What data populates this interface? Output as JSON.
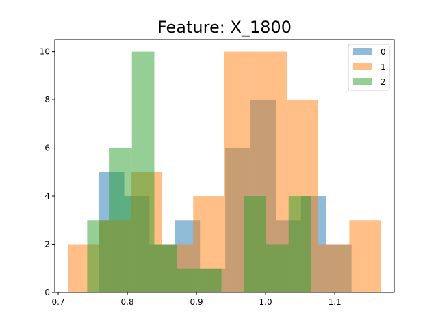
{
  "chart_data": {
    "type": "histogram",
    "title": "Feature: X_1800",
    "xlabel": "",
    "ylabel": "",
    "xlim": [
      0.695,
      1.186
    ],
    "ylim": [
      0,
      10.5
    ],
    "x_ticks": [
      0.7,
      0.8,
      0.9,
      1.0,
      1.1
    ],
    "x_tick_labels": [
      "0.7",
      "0.8",
      "0.9",
      "1.0",
      "1.1"
    ],
    "y_ticks": [
      0,
      2,
      4,
      6,
      8,
      10
    ],
    "y_tick_labels": [
      "0",
      "2",
      "4",
      "6",
      "8",
      "10"
    ],
    "grid": false,
    "legend_position": "top-right",
    "series": [
      {
        "name": "0",
        "color": "#1f77b4",
        "alpha": 0.5,
        "bin_edges": [
          0.759,
          0.7955,
          0.832,
          0.8686,
          0.9051,
          0.9416,
          0.9782,
          1.0147,
          1.0512,
          1.0878,
          1.1243
        ],
        "counts": [
          5,
          4,
          2,
          3,
          1,
          6,
          8,
          3,
          4,
          2
        ]
      },
      {
        "name": "1",
        "color": "#ff7f0e",
        "alpha": 0.5,
        "bin_edges": [
          0.7145,
          0.7597,
          0.8049,
          0.8501,
          0.8952,
          0.9404,
          0.9856,
          1.0308,
          1.076,
          1.1211,
          1.1663
        ],
        "counts": [
          2,
          3,
          5,
          2,
          4,
          10,
          10,
          8,
          2,
          3
        ]
      },
      {
        "name": "2",
        "color": "#2ca02c",
        "alpha": 0.5,
        "bin_edges": [
          0.7419,
          0.7743,
          0.8066,
          0.839,
          0.8714,
          0.9038,
          0.9361,
          0.9685,
          1.0009,
          1.0333,
          1.0656
        ],
        "counts": [
          3,
          6,
          10,
          2,
          1,
          1,
          0,
          4,
          2,
          4
        ]
      }
    ]
  }
}
